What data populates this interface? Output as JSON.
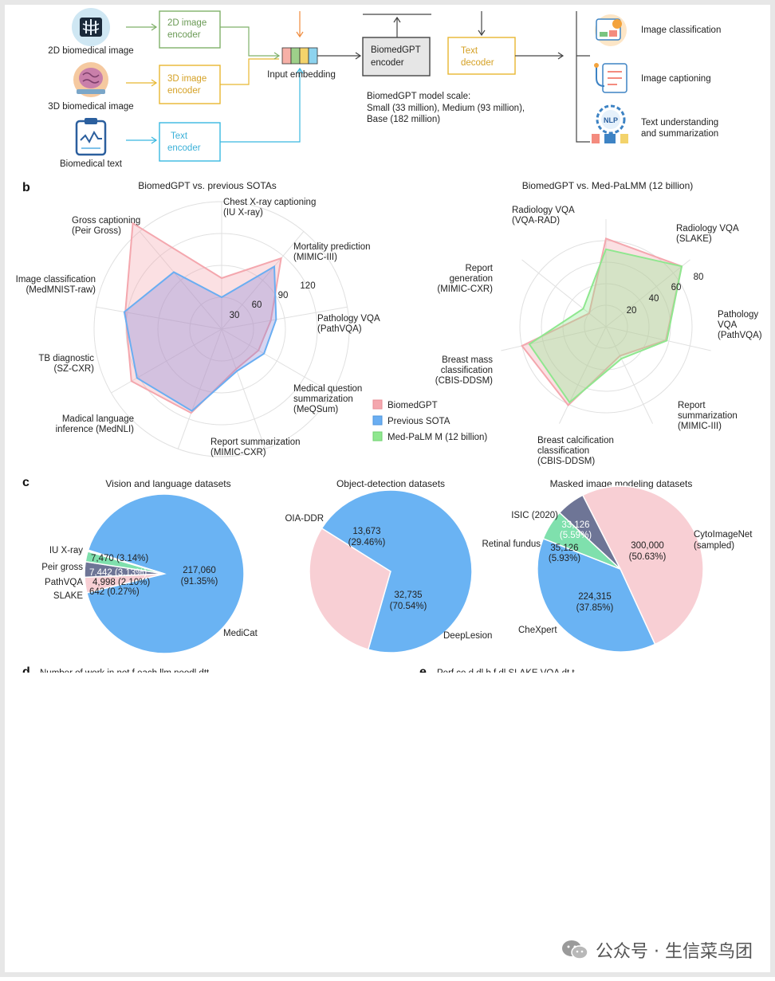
{
  "colors": {
    "biomedgpt": "#f4a7ae",
    "previous_sota": "#6aaef2",
    "medpalm": "#8fe78f",
    "pink_fill": "#f8cfd4",
    "blue_fill": "#6ab3f3",
    "green_fill": "#7fe0ad",
    "slate_fill": "#6e7596",
    "green_box": "#7fb069",
    "yellow_box": "#e8b730",
    "blue_box": "#39b8e0"
  },
  "panel_a": {
    "inputs": [
      {
        "label": "2D biomedical image",
        "encoder": "2D image\nencoder",
        "icon": "xray-icon"
      },
      {
        "label": "3D biomedical image",
        "encoder": "3D image\nencoder",
        "icon": "brain-icon"
      },
      {
        "label": "Biomedical text",
        "encoder": "Text\nencoder",
        "icon": "clipboard-icon"
      }
    ],
    "input_embedding": "Input embedding",
    "model": "BiomedGPT\nencoder",
    "decoder": "Text\ndecoder",
    "scale_title": "BiomedGPT model scale:",
    "scale_line1": "Small (33 million), Medium (93 million),",
    "scale_line2": "Base (182 million)",
    "outputs": [
      {
        "label": "Image classification",
        "icon": "classification-icon"
      },
      {
        "label": "Image captioning",
        "icon": "stethoscope-icon"
      },
      {
        "label": "Text understanding\nand summarization",
        "icon": "nlp-gear-icon",
        "badge": "NLP"
      }
    ]
  },
  "panel_b": {
    "letter": "b",
    "legend": [
      "BiomedGPT",
      "Previous SOTA",
      "Med-PaLM M (12 billion)"
    ],
    "left": {
      "title": "BiomedGPT vs. previous SOTAs",
      "ticks": [
        "30",
        "60",
        "90",
        "120"
      ],
      "axes": [
        "Chest X-ray captioning\n(IU X-ray)",
        "Mortality prediction\n(MIMIC-III)",
        "Pathology VQA\n(PathVQA)",
        "Medical question\nsummarization\n(MeQSum)",
        "Report summarization\n(MIMIC-CXR)",
        "Madical language\ninference (MedNLI)",
        "TB diagnostic\n(SZ-CXR)",
        "Image classification\n(MedMNIST-raw)",
        "Gross captioning\n(Peir Gross)"
      ]
    },
    "right": {
      "title": "BiomedGPT vs. Med-PaLMM (12 billion)",
      "ticks": [
        "20",
        "40",
        "60",
        "80"
      ],
      "axes": [
        "Radiology VQA\n(VQA-RAD)",
        "Radiology VQA\n(SLAKE)",
        "Pathology\nVQA\n(PathVQA)",
        "Report\nsummarization\n(MIMIC-III)",
        "Breast calcification\nclassification\n(CBIS-DDSM)",
        "Breast mass\nclassification\n(CBIS-DDSM)",
        "Report\ngeneration\n(MIMIC-CXR)"
      ]
    }
  },
  "panel_c": {
    "letter": "c",
    "vision": {
      "title": "Vision and language datasets",
      "labels": [
        "MediCat",
        "IU X-ray",
        "Peir gross",
        "PathVQA",
        "SLAKE"
      ],
      "values": [
        "217,060\n(91.35%)",
        "7,470 (3.14%)",
        "7,442 (3.13%)",
        "4,998 (2.10%)",
        "642 (0.27%)"
      ]
    },
    "detection": {
      "title": "Object-detection datasets",
      "labels": [
        "OIA-DDR",
        "DeepLesion"
      ],
      "values": [
        "13,673\n(29.46%)",
        "32,735\n(70.54%)"
      ]
    },
    "masked": {
      "title": "Masked image modeling datasets",
      "labels": [
        "ISIC (2020)",
        "Retinal fundus",
        "CytoImageNet\n(sampled)",
        "CheXpert"
      ],
      "values": [
        "33,126\n(5.59%)",
        "35,126\n(5.93%)",
        "300,000\n(50.63%)",
        "224,315\n(37.85%)"
      ]
    }
  },
  "panel_de_partial": {
    "d_letter": "d",
    "d_title": "Number of work in not f each llm neodl dtt",
    "e_letter": "e",
    "e_title": "Perf     ce d dl b f dl    SLAKE VQA dt t"
  },
  "watermark": "公众号 · 生信菜鸟团",
  "chart_data": [
    {
      "type": "radar",
      "title": "BiomedGPT vs. previous SOTAs",
      "axes": [
        "Chest X-ray captioning (IU X-ray)",
        "Mortality prediction (MIMIC-III)",
        "Pathology VQA (PathVQA)",
        "Medical question summarization (MeQSum)",
        "Report summarization (MIMIC-CXR)",
        "Madical language inference (MedNLI)",
        "TB diagnostic (SZ-CXR)",
        "Image classification (MedMNIST-raw)",
        "Gross captioning (Peir Gross)"
      ],
      "rmax": 120,
      "ticks": [
        30,
        60,
        90,
        120
      ],
      "series": [
        {
          "name": "BiomedGPT",
          "values": [
            48,
            87,
            47,
            40,
            40,
            84,
            98,
            92,
            130
          ]
        },
        {
          "name": "Previous SOTA",
          "values": [
            30,
            77,
            52,
            46,
            42,
            82,
            92,
            93,
            70
          ]
        }
      ]
    },
    {
      "type": "radar",
      "title": "BiomedGPT vs. Med-PaLMM (12 billion)",
      "axes": [
        "Radiology VQA (VQA-RAD)",
        "Radiology VQA (SLAKE)",
        "Pathology VQA (PathVQA)",
        "Report summarization (MIMIC-III)",
        "Breast calcification classification (CBIS-DDSM)",
        "Breast mass classification (CBIS-DDSM)",
        "Report generation (MIMIC-CXR)"
      ],
      "rmax": 100,
      "ticks": [
        20,
        40,
        60,
        80
      ],
      "series": [
        {
          "name": "BiomedGPT",
          "values": [
            82,
            90,
            57,
            30,
            81,
            80,
            20
          ]
        },
        {
          "name": "Med-PaLM M (12 billion)",
          "values": [
            72,
            90,
            58,
            33,
            78,
            73,
            27
          ]
        }
      ]
    },
    {
      "type": "pie",
      "title": "Vision and language datasets",
      "categories": [
        "MediCat",
        "IU X-ray",
        "Peir gross",
        "PathVQA",
        "SLAKE"
      ],
      "values": [
        217060,
        7470,
        7442,
        4998,
        642
      ],
      "percent": [
        91.35,
        3.14,
        3.13,
        2.1,
        0.27
      ]
    },
    {
      "type": "pie",
      "title": "Object-detection datasets",
      "categories": [
        "OIA-DDR",
        "DeepLesion"
      ],
      "values": [
        13673,
        32735
      ],
      "percent": [
        29.46,
        70.54
      ]
    },
    {
      "type": "pie",
      "title": "Masked image modeling datasets",
      "categories": [
        "CytoImageNet (sampled)",
        "CheXpert",
        "Retinal fundus",
        "ISIC (2020)"
      ],
      "values": [
        300000,
        224315,
        35126,
        33126
      ],
      "percent": [
        50.63,
        37.85,
        5.93,
        5.59
      ]
    }
  ]
}
